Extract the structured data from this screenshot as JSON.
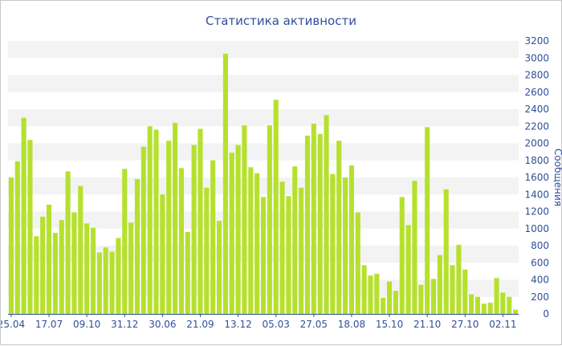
{
  "chart_data": {
    "type": "bar",
    "title": "Статистика активности",
    "xlabel": "",
    "ylabel": "Сообщения",
    "ylim": [
      0,
      3200
    ],
    "y_ticks": [
      0,
      200,
      400,
      600,
      800,
      1000,
      1200,
      1400,
      1600,
      1800,
      2000,
      2200,
      2400,
      2600,
      2800,
      3000,
      3200
    ],
    "x_tick_labels": [
      {
        "index": 0,
        "label": "25.04"
      },
      {
        "index": 6,
        "label": "17.07"
      },
      {
        "index": 12,
        "label": "09.10"
      },
      {
        "index": 18,
        "label": "31.12"
      },
      {
        "index": 24,
        "label": "30.06"
      },
      {
        "index": 30,
        "label": "21.09"
      },
      {
        "index": 36,
        "label": "13.12"
      },
      {
        "index": 42,
        "label": "05.03"
      },
      {
        "index": 48,
        "label": "27.05"
      },
      {
        "index": 54,
        "label": "18.08"
      },
      {
        "index": 60,
        "label": "15.10"
      },
      {
        "index": 66,
        "label": "21.10"
      },
      {
        "index": 72,
        "label": "27.10"
      },
      {
        "index": 78,
        "label": "02.11"
      }
    ],
    "values": [
      1600,
      1790,
      2300,
      2040,
      910,
      1140,
      1280,
      950,
      1100,
      1670,
      1190,
      1500,
      1060,
      1010,
      720,
      780,
      730,
      890,
      1700,
      1070,
      1580,
      1960,
      2200,
      2160,
      1400,
      2030,
      2240,
      1710,
      960,
      1980,
      2170,
      1480,
      1800,
      1090,
      3050,
      1890,
      1980,
      2210,
      1720,
      1650,
      1370,
      2210,
      2510,
      1550,
      1380,
      1730,
      1480,
      2090,
      2230,
      2110,
      2330,
      1640,
      2030,
      1600,
      1740,
      1190,
      570,
      450,
      470,
      190,
      380,
      270,
      1370,
      1040,
      1560,
      340,
      2190,
      410,
      690,
      1460,
      570,
      810,
      520,
      230,
      200,
      120,
      130,
      420,
      250,
      200,
      50
    ],
    "bar_color": "#b5e12e",
    "band_color": "#f3f3f3",
    "title_color": "#2f4f9a",
    "grid": true,
    "y_axis_position": "right"
  }
}
